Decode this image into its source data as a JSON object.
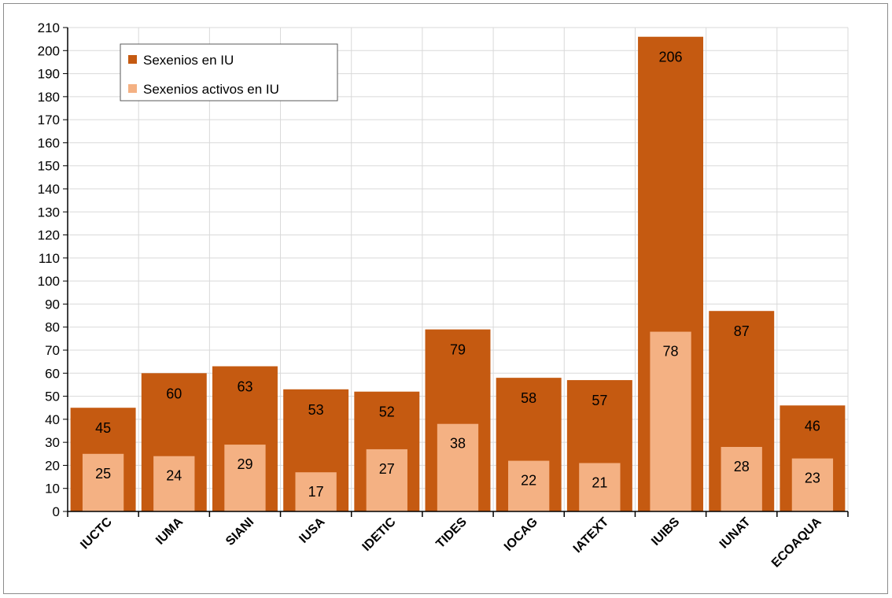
{
  "chart_data": {
    "type": "bar",
    "categories": [
      "IUCTC",
      "IUMA",
      "SIANI",
      "IUSA",
      "IDETIC",
      "TIDES",
      "IOCAG",
      "IATEXT",
      "IUIBS",
      "IUNAT",
      "ECOAQUA"
    ],
    "series": [
      {
        "name": "Sexenios en IU",
        "values": [
          45,
          60,
          63,
          53,
          52,
          79,
          58,
          57,
          206,
          87,
          46
        ],
        "color": "#c55a11"
      },
      {
        "name": "Sexenios activos en IU",
        "values": [
          25,
          24,
          29,
          17,
          27,
          38,
          22,
          21,
          78,
          28,
          23
        ],
        "color": "#f4b183"
      }
    ],
    "title": "",
    "xlabel": "",
    "ylabel": "",
    "ylim": [
      0,
      210
    ],
    "ytick_step": 10,
    "grid": true,
    "legend_position": "top-left",
    "overlapping_bars": true,
    "data_labels": true
  }
}
